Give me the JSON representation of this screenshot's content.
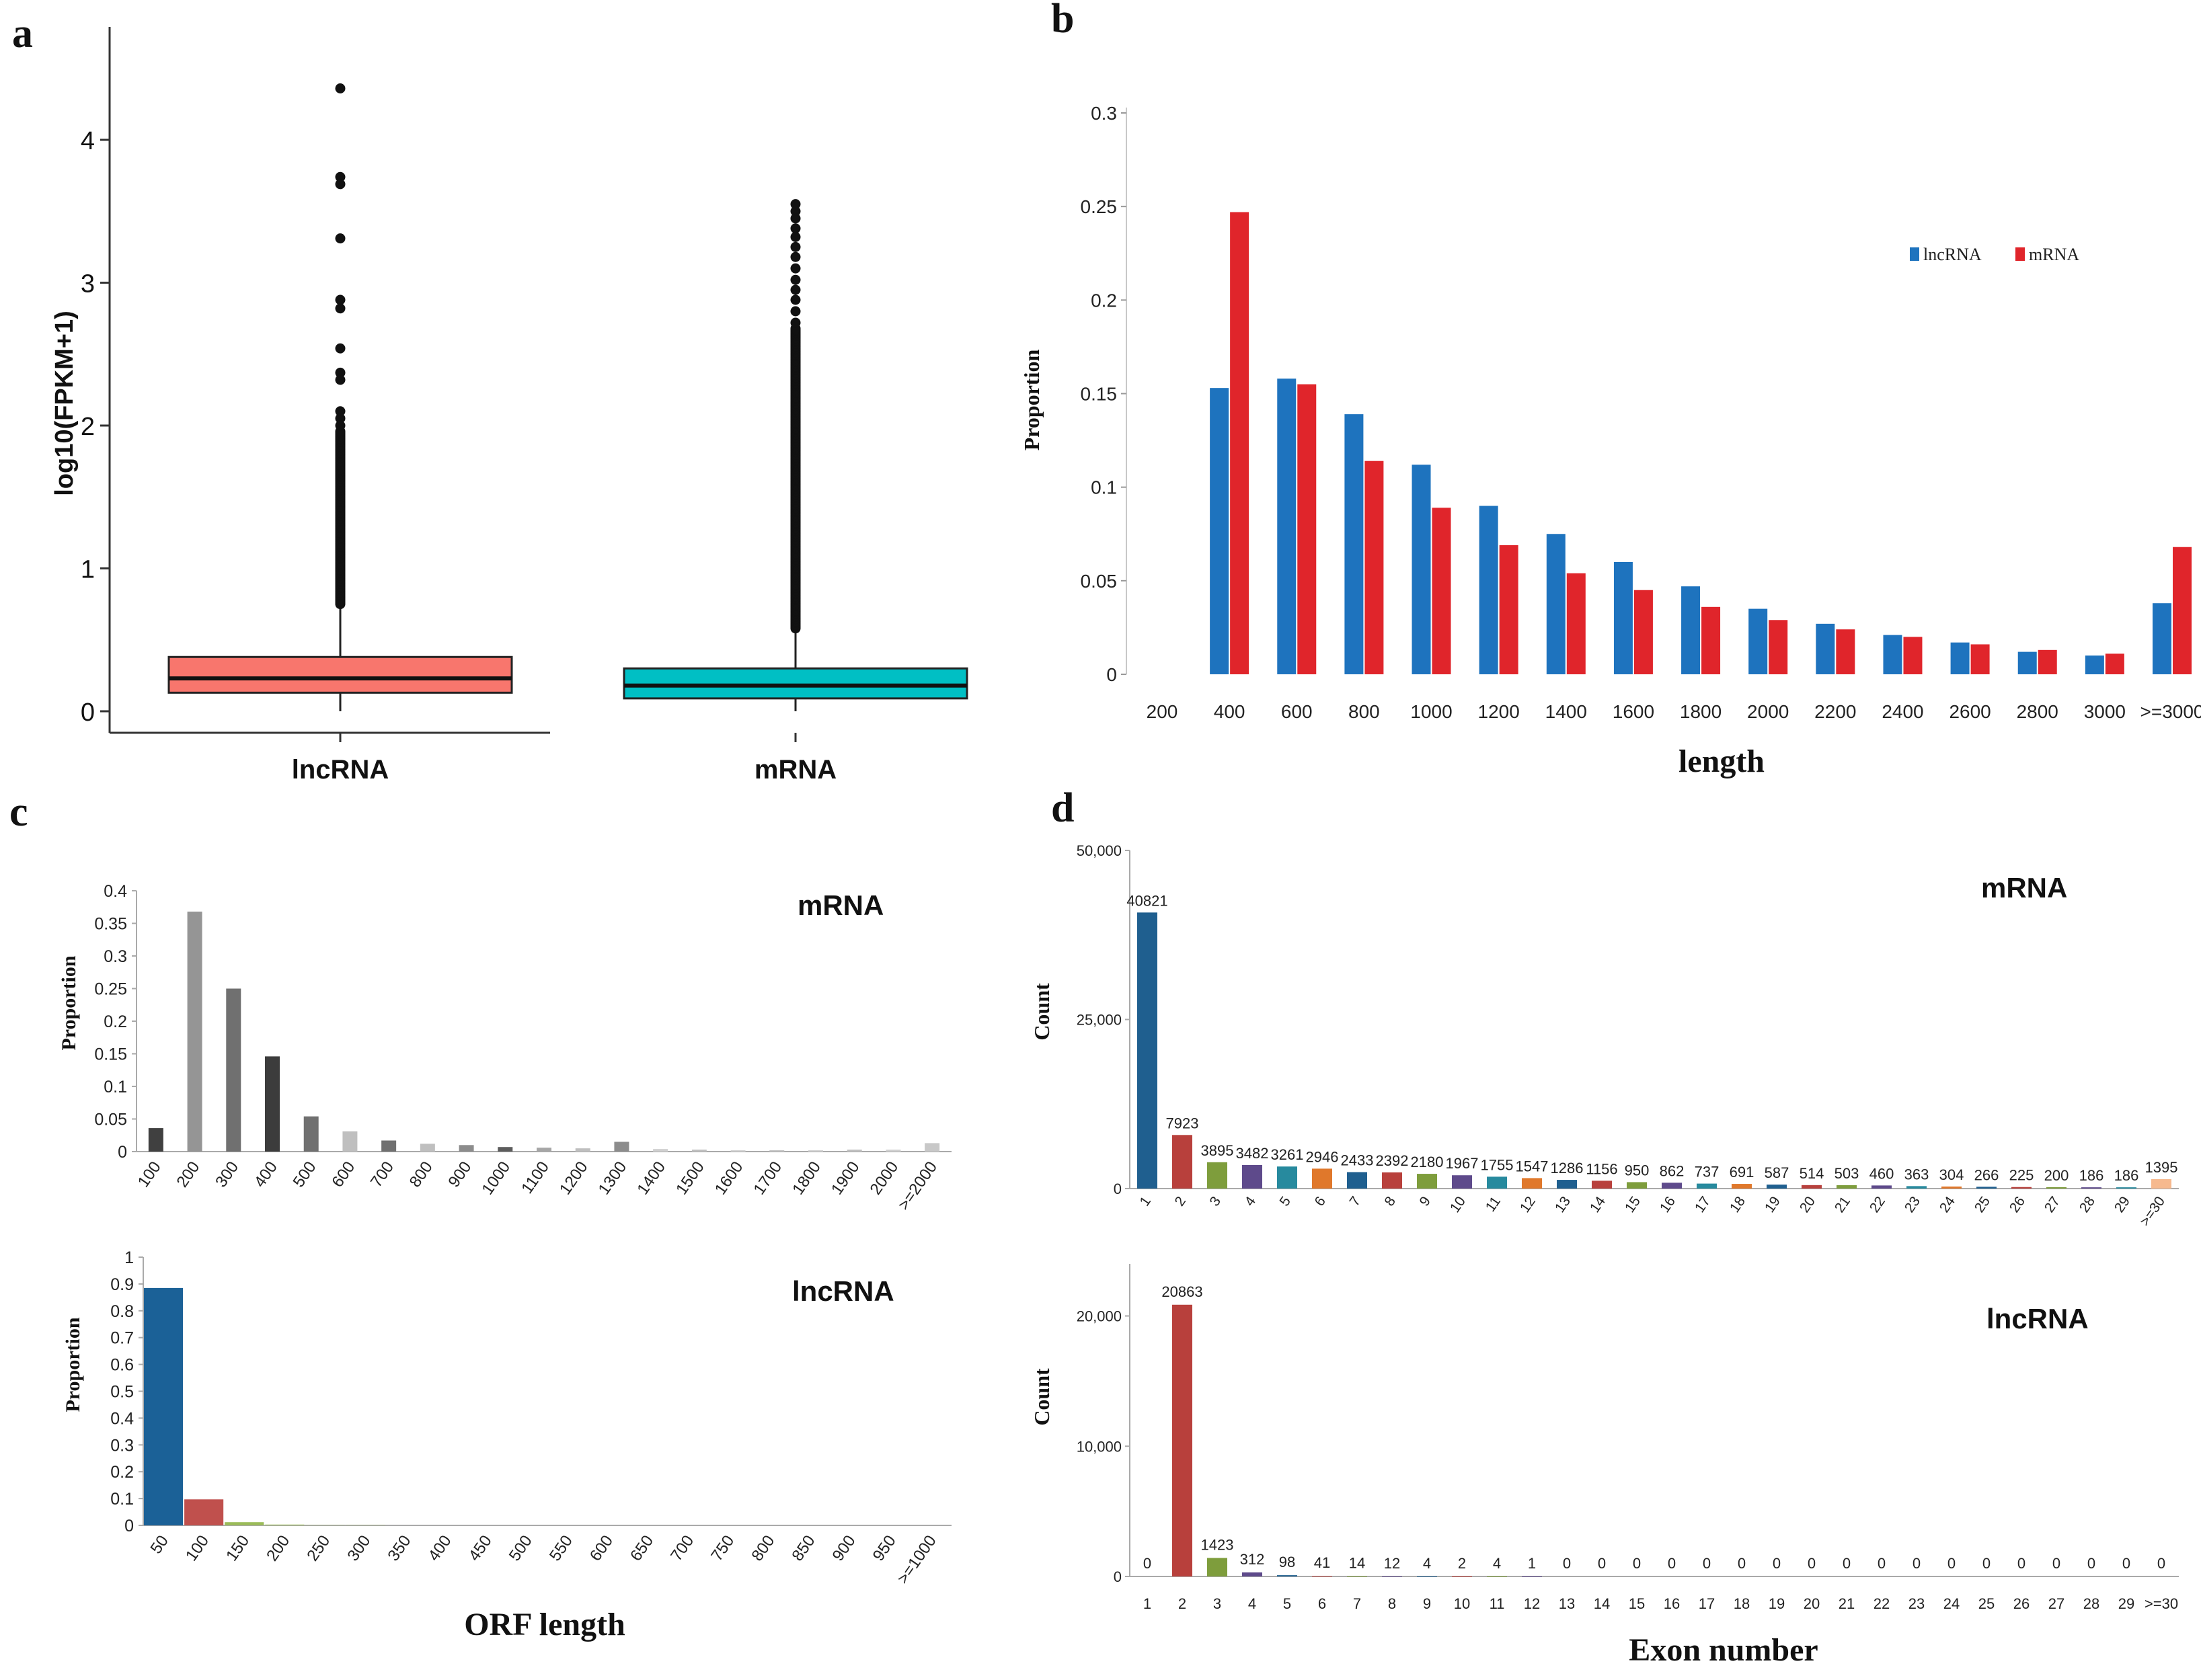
{
  "panel_labels": {
    "a": "a",
    "b": "b",
    "c": "c",
    "d": "d"
  },
  "colors": {
    "lncRNA_box": "#F8766D",
    "mRNA_box": "#00BFC4",
    "b_lncRNA": "#1E73BE",
    "b_mRNA": "#E0252B",
    "c_lnc_100": "#1B6197",
    "c_lnc_200": "#C0504D",
    "c_lnc_rest": "#9BBB59",
    "mrna_palette": [
      "#1F5F8F",
      "#B8403C",
      "#7E9D3C",
      "#5E4A8B",
      "#278A9E",
      "#E0782B"
    ]
  },
  "chart_data": [
    {
      "id": "a",
      "type": "box",
      "ylabel": "log10(FPKM+1)",
      "yticks": [
        0,
        1,
        2,
        3,
        4
      ],
      "ylim": [
        -0.08,
        4.5
      ],
      "categories": [
        "lncRNA",
        "mRNA"
      ],
      "boxes": [
        {
          "name": "lncRNA",
          "q1": 0.13,
          "median": 0.23,
          "q3": 0.38,
          "whisker_low": 0,
          "whisker_high": 0.75,
          "outliers": [
            4.36,
            3.74,
            3.69,
            3.31,
            2.88,
            2.82,
            2.54,
            2.37,
            2.32,
            2.1,
            2.05,
            2.0
          ],
          "outlier_band": [
            0.75,
            1.96
          ]
        },
        {
          "name": "mRNA",
          "q1": 0.09,
          "median": 0.18,
          "q3": 0.3,
          "whisker_low": 0,
          "whisker_high": 0.58,
          "outliers": [
            3.55,
            3.5,
            3.45,
            3.38,
            3.32,
            3.25,
            3.18,
            3.1,
            3.02,
            2.95,
            2.88,
            2.8,
            2.72
          ],
          "outlier_band": [
            0.58,
            2.68
          ]
        }
      ]
    },
    {
      "id": "b",
      "type": "bar",
      "xlabel": "length",
      "ylabel": "Proportion",
      "yticks": [
        "0",
        "0.05",
        "0.1",
        "0.15",
        "0.2",
        "0.25",
        "0.3"
      ],
      "ylim": [
        0,
        0.3
      ],
      "categories": [
        "200",
        "400",
        "600",
        "800",
        "1000",
        "1200",
        "1400",
        "1600",
        "1800",
        "2000",
        "2200",
        "2400",
        "2600",
        "2800",
        "3000",
        ">=3000"
      ],
      "legend_position": "top-right",
      "series": [
        {
          "name": "lncRNA",
          "values": [
            0,
            0.153,
            0.158,
            0.139,
            0.112,
            0.09,
            0.075,
            0.06,
            0.047,
            0.035,
            0.027,
            0.021,
            0.017,
            0.012,
            0.01,
            0.038
          ]
        },
        {
          "name": "mRNA",
          "values": [
            0,
            0.247,
            0.155,
            0.114,
            0.089,
            0.069,
            0.054,
            0.045,
            0.036,
            0.029,
            0.024,
            0.02,
            0.016,
            0.013,
            0.011,
            0.068
          ]
        }
      ]
    },
    {
      "id": "c_mrna",
      "type": "bar",
      "title": "mRNA",
      "ylabel": "Proportion",
      "yticks": [
        "0",
        "0.05",
        "0.1",
        "0.15",
        "0.2",
        "0.25",
        "0.3",
        "0.35",
        "0.4"
      ],
      "ylim": [
        0,
        0.4
      ],
      "categories": [
        "100",
        "200",
        "300",
        "400",
        "500",
        "600",
        "700",
        "800",
        "900",
        "1000",
        "1100",
        "1200",
        "1300",
        "1400",
        "1500",
        "1600",
        "1700",
        "1800",
        "1900",
        "2000",
        ">=2000"
      ],
      "values": [
        0.036,
        0.368,
        0.25,
        0.146,
        0.054,
        0.031,
        0.017,
        0.012,
        0.01,
        0.007,
        0.006,
        0.005,
        0.015,
        0.004,
        0.003,
        0.002,
        0.002,
        0.002,
        0.003,
        0.003,
        0.013
      ],
      "bar_colors": [
        "#404040",
        "#959595",
        "#707070",
        "#3C3C3C",
        "#707070",
        "#BFBFBF",
        "#707070",
        "#BFBFBF",
        "#8C8C8C",
        "#5C5C5C",
        "#A6A6A6",
        "#BFBFBF",
        "#8C8C8C",
        "#D0D0D0",
        "#BFBFBF",
        "#D0D0D0",
        "#BFBFBF",
        "#D0D0D0",
        "#BFBFBF",
        "#D0D0D0",
        "#C8C8C8"
      ]
    },
    {
      "id": "c_lncrna",
      "type": "bar",
      "title": "lncRNA",
      "xlabel": "ORF length",
      "ylabel": "Proportion",
      "yticks": [
        "0",
        "0.1",
        "0.2",
        "0.3",
        "0.4",
        "0.5",
        "0.6",
        "0.7",
        "0.8",
        "0.9",
        "1"
      ],
      "ylim": [
        0,
        1
      ],
      "categories": [
        "50",
        "100",
        "150",
        "200",
        "250",
        "300",
        "350",
        "400",
        "450",
        "500",
        "550",
        "600",
        "650",
        "700",
        "750",
        "800",
        "850",
        "900",
        "950",
        ">=1000"
      ],
      "values": [
        0.885,
        0.097,
        0.012,
        0.003,
        0.001,
        0.001,
        0,
        0,
        0,
        0,
        0,
        0,
        0,
        0,
        0,
        0,
        0,
        0,
        0,
        0
      ]
    },
    {
      "id": "d_mrna",
      "type": "bar",
      "title": "mRNA",
      "ylabel": "Count",
      "yticks": [
        "0",
        "25,000",
        "50,000"
      ],
      "yticks_visible": [
        "0",
        "25,000",
        "50,000"
      ],
      "ylim": [
        0,
        50000
      ],
      "categories": [
        "1",
        "2",
        "3",
        "4",
        "5",
        "6",
        "7",
        "8",
        "9",
        "10",
        "11",
        "12",
        "13",
        "14",
        "15",
        "16",
        "17",
        "18",
        "19",
        "20",
        "21",
        "22",
        "23",
        "24",
        "25",
        "26",
        "27",
        "28",
        "29",
        ">=30"
      ],
      "values": [
        40821,
        7923,
        3895,
        3482,
        3261,
        2946,
        2433,
        2392,
        2180,
        1967,
        1755,
        1547,
        1286,
        1156,
        950,
        862,
        737,
        691,
        587,
        514,
        503,
        460,
        363,
        304,
        266,
        225,
        200,
        186,
        186,
        1395
      ],
      "labels": [
        "40821",
        "7923",
        "3895",
        "3482",
        "3261",
        "2946",
        "2433",
        "2392",
        "2180",
        "1967",
        "1755",
        "1547",
        "1286",
        "1156",
        "950",
        "862",
        "737",
        "691",
        "587",
        "514",
        "503",
        "460",
        "363",
        "304",
        "266",
        "225",
        "200",
        "186",
        "186",
        "1395"
      ]
    },
    {
      "id": "d_lncrna",
      "type": "bar",
      "title": "lncRNA",
      "xlabel": "Exon number",
      "ylabel": "Count",
      "yticks": [
        "0",
        "10,000",
        "20,000"
      ],
      "ylim": [
        0,
        24000
      ],
      "categories": [
        "1",
        "2",
        "3",
        "4",
        "5",
        "6",
        "7",
        "8",
        "9",
        "10",
        "11",
        "12",
        "13",
        "14",
        "15",
        "16",
        "17",
        "18",
        "19",
        "20",
        "21",
        "22",
        "23",
        "24",
        "25",
        "26",
        "27",
        "28",
        "29",
        ">=30"
      ],
      "values": [
        0,
        20863,
        1423,
        312,
        98,
        41,
        14,
        12,
        4,
        2,
        4,
        1,
        0,
        0,
        0,
        0,
        0,
        0,
        0,
        0,
        0,
        0,
        0,
        0,
        0,
        0,
        0,
        0,
        0,
        0
      ],
      "labels": [
        "0",
        "20863",
        "1423",
        "312",
        "98",
        "41",
        "14",
        "12",
        "4",
        "2",
        "4",
        "1",
        "0",
        "0",
        "0",
        "0",
        "0",
        "0",
        "0",
        "0",
        "0",
        "0",
        "0",
        "0",
        "0",
        "0",
        "0",
        "0",
        "0",
        "0"
      ]
    }
  ]
}
